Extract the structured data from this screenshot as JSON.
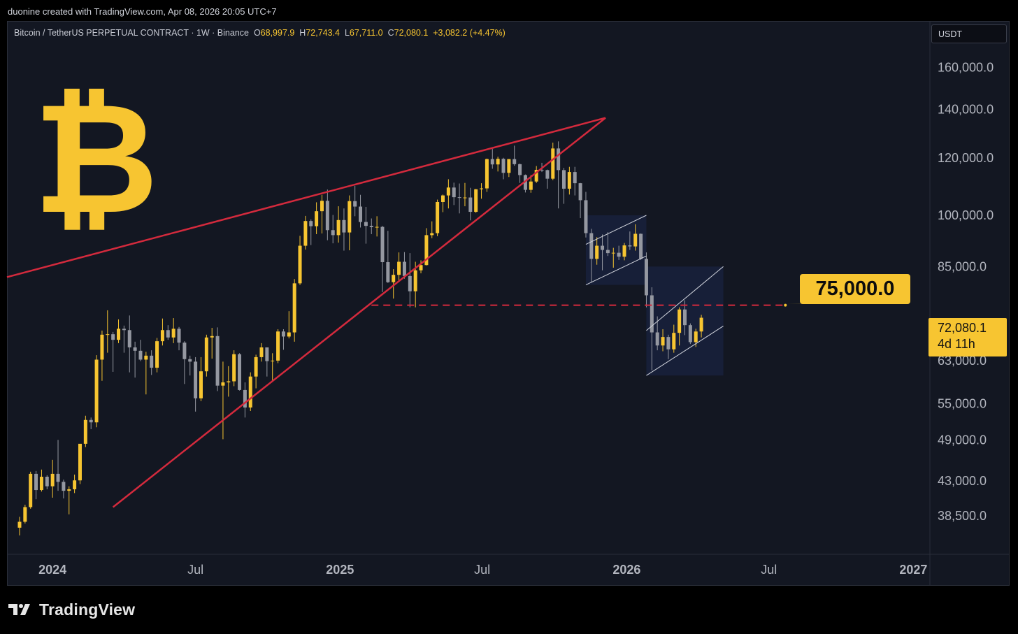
{
  "header": {
    "attribution": "duonine created with TradingView.com, Apr 08, 2026 20:05 UTC+7"
  },
  "legend": {
    "symbol": "Bitcoin / TetherUS PERPETUAL CONTRACT · 1W · Binance",
    "open_label": "O",
    "open": "68,997.9",
    "high_label": "H",
    "high": "72,743.4",
    "low_label": "L",
    "low": "67,711.0",
    "close_label": "C",
    "close": "72,080.1",
    "change": "+3,082.2 (+4.47%)"
  },
  "currency_button": "USDT",
  "logo_glyph": "₿",
  "colors": {
    "background": "#131722",
    "bull": "#f7c531",
    "bear": "#9598a1",
    "trendline": "#d42a3d",
    "channel_fill": "#1a2340",
    "target_label": "#f7c531"
  },
  "target_label": "75,000.0",
  "price_tag": {
    "price": "72,080.1",
    "countdown": "4d 11h"
  },
  "footer": {
    "brand": "TradingView",
    "logo_icon": "tradingview-logo-icon"
  },
  "chart_data": {
    "type": "candlestick",
    "scale": "log",
    "timeframe": "1W",
    "y_ticks": [
      160000,
      140000,
      120000,
      100000,
      85000,
      72000,
      63000,
      55000,
      49000,
      43000,
      38500
    ],
    "y_tick_labels": [
      "160,000.0",
      "140,000.0",
      "120,000.0",
      "100,000.0",
      "85,000.0",
      "72,000.0",
      "63,000.0",
      "55,000.0",
      "49,000.0",
      "43,000.0",
      "38,500.0"
    ],
    "x_ticks": [
      {
        "label": "2024",
        "bold": true,
        "date": "2024-01-01"
      },
      {
        "label": "Jul",
        "bold": false,
        "date": "2024-07-01"
      },
      {
        "label": "2025",
        "bold": true,
        "date": "2025-01-01"
      },
      {
        "label": "Jul",
        "bold": false,
        "date": "2025-07-01"
      },
      {
        "label": "2026",
        "bold": true,
        "date": "2026-01-01"
      },
      {
        "label": "Jul",
        "bold": false,
        "date": "2026-07-01"
      },
      {
        "label": "2027",
        "bold": true,
        "date": "2027-01-01"
      }
    ],
    "y_range": [
      34000,
      185000
    ],
    "x_range": [
      "2023-11-04",
      "2027-01-22"
    ],
    "candles": [
      [
        "2023-11-20",
        37000,
        38300,
        36100,
        37700
      ],
      [
        "2023-11-27",
        37700,
        39800,
        37500,
        39500
      ],
      [
        "2023-12-04",
        39500,
        44200,
        39300,
        43900
      ],
      [
        "2023-12-11",
        43900,
        44300,
        40500,
        41700
      ],
      [
        "2023-12-18",
        41700,
        44500,
        41500,
        43500
      ],
      [
        "2023-12-25",
        43500,
        43700,
        41800,
        42200
      ],
      [
        "2024-01-01",
        42200,
        45900,
        40700,
        43900
      ],
      [
        "2024-01-08",
        43900,
        48900,
        41600,
        42800
      ],
      [
        "2024-01-15",
        42800,
        43100,
        40600,
        41600
      ],
      [
        "2024-01-22",
        41600,
        42200,
        38600,
        41800
      ],
      [
        "2024-01-29",
        41800,
        43800,
        41300,
        43000
      ],
      [
        "2024-02-05",
        43000,
        48200,
        42500,
        48300
      ],
      [
        "2024-02-12",
        48300,
        52800,
        47800,
        52100
      ],
      [
        "2024-02-19",
        52100,
        52500,
        50600,
        51700
      ],
      [
        "2024-02-26",
        51700,
        64000,
        50900,
        63100
      ],
      [
        "2024-03-04",
        63100,
        69200,
        59000,
        68300
      ],
      [
        "2024-03-11",
        68300,
        73800,
        64500,
        68400
      ],
      [
        "2024-03-18",
        68400,
        68900,
        60700,
        67200
      ],
      [
        "2024-03-25",
        67200,
        71700,
        66500,
        69600
      ],
      [
        "2024-04-01",
        69600,
        70300,
        64500,
        69300
      ],
      [
        "2024-04-08",
        69300,
        72600,
        60600,
        65600
      ],
      [
        "2024-04-15",
        65600,
        66800,
        59600,
        64900
      ],
      [
        "2024-04-22",
        64900,
        67200,
        62800,
        63100
      ],
      [
        "2024-04-29",
        63100,
        64700,
        56500,
        63900
      ],
      [
        "2024-05-06",
        63900,
        65000,
        60100,
        61500
      ],
      [
        "2024-05-13",
        61500,
        67600,
        60600,
        66900
      ],
      [
        "2024-05-20",
        66900,
        71900,
        66000,
        69300
      ],
      [
        "2024-05-27",
        69300,
        70400,
        67200,
        67700
      ],
      [
        "2024-06-03",
        67700,
        72000,
        66500,
        69600
      ],
      [
        "2024-06-10",
        69600,
        70000,
        65000,
        66600
      ],
      [
        "2024-06-17",
        66600,
        66900,
        58400,
        63200
      ],
      [
        "2024-06-24",
        63200,
        63900,
        60000,
        62700
      ],
      [
        "2024-07-01",
        62700,
        63600,
        53500,
        55800
      ],
      [
        "2024-07-08",
        55800,
        63600,
        55300,
        60800
      ],
      [
        "2024-07-15",
        60800,
        68300,
        59800,
        67700
      ],
      [
        "2024-07-22",
        67700,
        69800,
        63300,
        68000
      ],
      [
        "2024-07-29",
        68000,
        69900,
        57100,
        58100
      ],
      [
        "2024-08-05",
        58100,
        62700,
        49000,
        58700
      ],
      [
        "2024-08-12",
        58700,
        61800,
        56100,
        58900
      ],
      [
        "2024-08-19",
        58900,
        65000,
        58000,
        64200
      ],
      [
        "2024-08-26",
        64200,
        64400,
        57200,
        57300
      ],
      [
        "2024-09-02",
        57300,
        58700,
        52500,
        54200
      ],
      [
        "2024-09-09",
        54200,
        60600,
        53600,
        59800
      ],
      [
        "2024-09-16",
        59800,
        64100,
        57600,
        63600
      ],
      [
        "2024-09-23",
        63600,
        66500,
        62700,
        65600
      ],
      [
        "2024-09-30",
        65600,
        65600,
        59800,
        62800
      ],
      [
        "2024-10-07",
        62800,
        64400,
        58900,
        62900
      ],
      [
        "2024-10-14",
        62900,
        69500,
        62400,
        69000
      ],
      [
        "2024-10-21",
        69000,
        69500,
        65100,
        67900
      ],
      [
        "2024-10-28",
        67900,
        73600,
        67500,
        68800
      ],
      [
        "2024-11-04",
        68800,
        81500,
        66800,
        80400
      ],
      [
        "2024-11-11",
        80400,
        93500,
        80000,
        90600
      ],
      [
        "2024-11-18",
        90600,
        99600,
        89500,
        98000
      ],
      [
        "2024-11-25",
        98000,
        98500,
        90800,
        96400
      ],
      [
        "2024-12-02",
        96400,
        104000,
        94000,
        101100
      ],
      [
        "2024-12-09",
        101100,
        106500,
        94200,
        104500
      ],
      [
        "2024-12-16",
        104500,
        108300,
        92200,
        95200
      ],
      [
        "2024-12-23",
        95200,
        99900,
        91300,
        93700
      ],
      [
        "2024-12-30",
        93700,
        102700,
        91500,
        98300
      ],
      [
        "2025-01-06",
        98300,
        102000,
        89200,
        94500
      ],
      [
        "2025-01-13",
        94500,
        106300,
        89300,
        104400
      ],
      [
        "2025-01-20",
        104400,
        109600,
        99500,
        102600
      ],
      [
        "2025-01-27",
        102600,
        106500,
        96000,
        97700
      ],
      [
        "2025-02-03",
        97700,
        102500,
        91200,
        96500
      ],
      [
        "2025-02-10",
        96500,
        98800,
        94000,
        96100
      ],
      [
        "2025-02-17",
        96100,
        99500,
        93300,
        96200
      ],
      [
        "2025-02-24",
        96200,
        96500,
        78200,
        86000
      ],
      [
        "2025-03-03",
        86000,
        95000,
        80500,
        80700
      ],
      [
        "2025-03-10",
        80700,
        84100,
        76600,
        82600
      ],
      [
        "2025-03-17",
        82600,
        88700,
        81000,
        86100
      ],
      [
        "2025-03-24",
        86100,
        88800,
        81600,
        82300
      ],
      [
        "2025-03-31",
        82300,
        88500,
        74500,
        78400
      ],
      [
        "2025-04-07",
        78400,
        86100,
        74500,
        83800
      ],
      [
        "2025-04-14",
        83800,
        86500,
        83000,
        85200
      ],
      [
        "2025-04-21",
        85200,
        95800,
        85100,
        93700
      ],
      [
        "2025-04-28",
        93700,
        97900,
        92800,
        94300
      ],
      [
        "2025-05-05",
        94300,
        104900,
        93400,
        104100
      ],
      [
        "2025-05-12",
        104100,
        106600,
        100800,
        106300
      ],
      [
        "2025-05-19",
        106300,
        111900,
        102000,
        109000
      ],
      [
        "2025-05-26",
        109000,
        110700,
        103100,
        105700
      ],
      [
        "2025-06-02",
        105700,
        110400,
        100400,
        105600
      ],
      [
        "2025-06-09",
        105600,
        110600,
        102700,
        105600
      ],
      [
        "2025-06-16",
        105600,
        108900,
        98200,
        100900
      ],
      [
        "2025-06-23",
        100900,
        108500,
        100600,
        108400
      ],
      [
        "2025-06-30",
        108400,
        110500,
        105200,
        108700
      ],
      [
        "2025-07-07",
        108700,
        119500,
        107500,
        119300
      ],
      [
        "2025-07-14",
        119300,
        123200,
        115700,
        117300
      ],
      [
        "2025-07-21",
        117300,
        120200,
        114700,
        119400
      ],
      [
        "2025-07-28",
        119400,
        119800,
        111900,
        114200
      ],
      [
        "2025-08-04",
        114200,
        119300,
        112700,
        119300
      ],
      [
        "2025-08-11",
        119300,
        124500,
        116800,
        117400
      ],
      [
        "2025-08-18",
        117400,
        117600,
        110600,
        113400
      ],
      [
        "2025-08-25",
        113400,
        113600,
        107300,
        108200
      ],
      [
        "2025-09-01",
        108200,
        113400,
        107200,
        111100
      ],
      [
        "2025-09-08",
        111100,
        116700,
        110600,
        115300
      ],
      [
        "2025-09-15",
        115300,
        117900,
        114500,
        115200
      ],
      [
        "2025-09-22",
        115200,
        115400,
        108600,
        112100
      ],
      [
        "2025-09-29",
        112100,
        125700,
        111600,
        123400
      ],
      [
        "2025-10-06",
        123400,
        126200,
        102000,
        115200
      ],
      [
        "2025-10-13",
        115200,
        116000,
        103500,
        108600
      ],
      [
        "2025-10-20",
        108600,
        116400,
        106600,
        114500
      ],
      [
        "2025-10-27",
        114500,
        116400,
        106300,
        110500
      ],
      [
        "2025-11-03",
        110500,
        110600,
        98900,
        104700
      ],
      [
        "2025-11-10",
        104700,
        107500,
        93000,
        94300
      ],
      [
        "2025-11-17",
        94300,
        95600,
        80600,
        86900
      ],
      [
        "2025-11-24",
        86900,
        93100,
        85300,
        90600
      ],
      [
        "2025-12-01",
        90600,
        93900,
        83800,
        89400
      ],
      [
        "2025-12-08",
        89400,
        94600,
        87700,
        88500
      ],
      [
        "2025-12-15",
        88500,
        90000,
        84500,
        88600
      ],
      [
        "2025-12-22",
        88600,
        90600,
        86600,
        87500
      ],
      [
        "2025-12-29",
        87500,
        91400,
        86500,
        90700
      ],
      [
        "2026-01-05",
        90700,
        94800,
        89400,
        90400
      ],
      [
        "2026-01-12",
        90400,
        97000,
        89200,
        94100
      ],
      [
        "2026-01-19",
        94100,
        94200,
        86600,
        86900
      ],
      [
        "2026-01-26",
        86900,
        88700,
        74500,
        77400
      ],
      [
        "2026-02-02",
        77400,
        79400,
        61000,
        68800
      ],
      [
        "2026-02-09",
        68800,
        72400,
        65000,
        66000
      ],
      [
        "2026-02-16",
        66000,
        69500,
        64800,
        67800
      ],
      [
        "2026-02-23",
        67800,
        68300,
        63200,
        65200
      ],
      [
        "2026-03-02",
        65200,
        70500,
        64500,
        68700
      ],
      [
        "2026-03-09",
        68700,
        74500,
        66000,
        74000
      ],
      [
        "2026-03-16",
        74000,
        76200,
        68200,
        70400
      ],
      [
        "2026-03-23",
        70400,
        70800,
        66300,
        66700
      ],
      [
        "2026-03-30",
        66700,
        69600,
        65700,
        68998
      ],
      [
        "2026-04-06",
        68998,
        72743,
        67711,
        72080
      ]
    ],
    "drawings": {
      "wedge_upper": {
        "from": [
          "2023-11-04",
          82000
        ],
        "to": [
          "2025-12-05",
          136000
        ]
      },
      "wedge_lower": {
        "from": [
          "2024-03-18",
          39500
        ],
        "to": [
          "2025-12-05",
          136000
        ]
      },
      "support_level": {
        "price": 75000,
        "from": "2025-02-10",
        "to": "2026-07-22"
      },
      "channel_1": {
        "lower": [
          [
            "2025-11-10",
            80000
          ],
          [
            "2026-01-26",
            87700
          ]
        ],
        "upper": [
          [
            "2025-11-10",
            91000
          ],
          [
            "2026-01-26",
            99800
          ]
        ]
      },
      "channel_1_box": {
        "from": "2025-11-10",
        "to": "2026-01-26",
        "high": 99800,
        "low": 80000
      },
      "channel_2": {
        "lower": [
          [
            "2026-01-26",
            60000
          ],
          [
            "2026-05-04",
            70200
          ]
        ],
        "upper": [
          [
            "2026-01-26",
            69200
          ],
          [
            "2026-05-04",
            84800
          ]
        ]
      },
      "channel_2_box": {
        "from": "2026-01-26",
        "to": "2026-05-04",
        "high": 84800,
        "low": 60000
      }
    },
    "last_price": 72080.1
  }
}
